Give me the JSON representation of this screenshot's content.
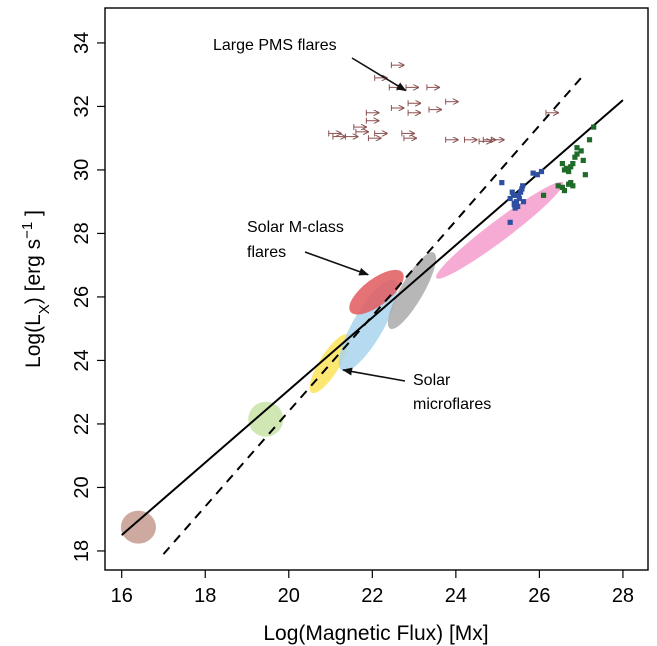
{
  "chart_data": {
    "type": "scatter",
    "title": "",
    "xlabel": "Log(Magnetic Flux) [Mx]",
    "ylabel_parts": {
      "pre": "Log(L",
      "sub": "X",
      "mid": ") [erg s",
      "sup": "−1",
      "post": " ]"
    },
    "xlim": [
      15.6,
      28.6
    ],
    "ylim": [
      17.4,
      35.1
    ],
    "x_ticks": [
      16,
      18,
      20,
      22,
      24,
      26,
      28
    ],
    "y_ticks": [
      18,
      20,
      22,
      24,
      26,
      28,
      30,
      32,
      34
    ],
    "grid": false,
    "fit_lines": [
      {
        "style": "solid",
        "x": [
          16.0,
          28.0
        ],
        "y": [
          18.5,
          32.2
        ]
      },
      {
        "style": "dashed",
        "x": [
          17.0,
          27.0
        ],
        "y": [
          17.9,
          32.9
        ]
      }
    ],
    "ellipses": [
      {
        "color": "#c49a8e",
        "cx": 16.4,
        "cy": 18.75,
        "rx": 0.42,
        "ry": 0.52,
        "angle": 0
      },
      {
        "color": "#c8e2a6",
        "cx": 19.45,
        "cy": 22.15,
        "rx": 0.42,
        "ry": 0.55,
        "angle": 0
      },
      {
        "color": "#fde35a",
        "cx": 20.98,
        "cy": 23.9,
        "rx": 0.82,
        "ry": 0.32,
        "angle": -58
      },
      {
        "color": "#a9d4ec",
        "cx": 21.9,
        "cy": 25.1,
        "rx": 1.25,
        "ry": 0.48,
        "angle": -60
      },
      {
        "color": "#aaaaaa",
        "cx": 22.95,
        "cy": 26.2,
        "rx": 1.05,
        "ry": 0.36,
        "angle": -60
      },
      {
        "color": "#e05a5e",
        "cx": 22.1,
        "cy": 26.15,
        "rx": 0.78,
        "ry": 0.42,
        "angle": -37
      },
      {
        "color": "#f49ccc",
        "cx": 25.05,
        "cy": 28.1,
        "rx": 1.9,
        "ry": 0.32,
        "angle": -37
      }
    ],
    "series": [
      {
        "marker": "arrow",
        "color": "#8a5050",
        "x": [
          21.2,
          21.5,
          22.6,
          22.2,
          22.55,
          22.95,
          23.45,
          23.0,
          22.0,
          22.6,
          23.9,
          23.5,
          23.0,
          22.0,
          21.7,
          21.75,
          22.2,
          22.85,
          21.1,
          22.05,
          22.9,
          23.9,
          24.35,
          25.0,
          24.8,
          24.7,
          26.3
        ],
        "y": [
          31.05,
          31.05,
          33.3,
          32.9,
          32.6,
          32.6,
          32.6,
          32.1,
          31.8,
          31.95,
          32.15,
          31.9,
          31.8,
          31.55,
          31.35,
          31.2,
          31.15,
          31.15,
          31.15,
          31.0,
          31.0,
          30.95,
          30.95,
          30.95,
          30.95,
          30.9,
          31.8
        ]
      },
      {
        "marker": "square",
        "color": "#2e4fa0",
        "x": [
          25.1,
          25.3,
          25.35,
          25.4,
          25.45,
          25.5,
          25.55,
          25.6,
          25.42,
          25.52,
          25.62,
          25.38,
          25.48,
          25.58,
          25.85,
          25.95,
          26.05,
          25.4,
          25.3
        ],
        "y": [
          29.6,
          29.1,
          29.3,
          28.9,
          29.0,
          29.2,
          29.3,
          29.5,
          28.8,
          29.1,
          29.0,
          29.2,
          28.85,
          29.4,
          29.9,
          29.85,
          29.95,
          28.95,
          28.35
        ]
      },
      {
        "marker": "square",
        "color": "#1f6b2a",
        "x": [
          26.1,
          26.45,
          26.55,
          26.6,
          26.65,
          26.7,
          26.75,
          26.8,
          26.85,
          26.9,
          27.0,
          27.1,
          27.2,
          27.3,
          26.55,
          26.6,
          26.7,
          26.75,
          26.8,
          26.9,
          27.05
        ],
        "y": [
          29.2,
          29.5,
          29.45,
          30.0,
          30.05,
          29.55,
          30.1,
          30.2,
          30.4,
          30.7,
          30.6,
          29.85,
          30.95,
          31.35,
          30.2,
          29.35,
          29.95,
          29.6,
          29.5,
          30.5,
          30.3
        ]
      }
    ],
    "annotations": [
      {
        "lines": [
          "Large PMS flares"
        ],
        "tip": [
          22.8,
          32.5
        ]
      },
      {
        "lines": [
          "Solar M-class",
          "flares"
        ],
        "tip": [
          21.9,
          26.7
        ]
      },
      {
        "lines": [
          "Solar",
          "microflares"
        ],
        "tip": [
          21.3,
          23.7
        ]
      }
    ]
  }
}
